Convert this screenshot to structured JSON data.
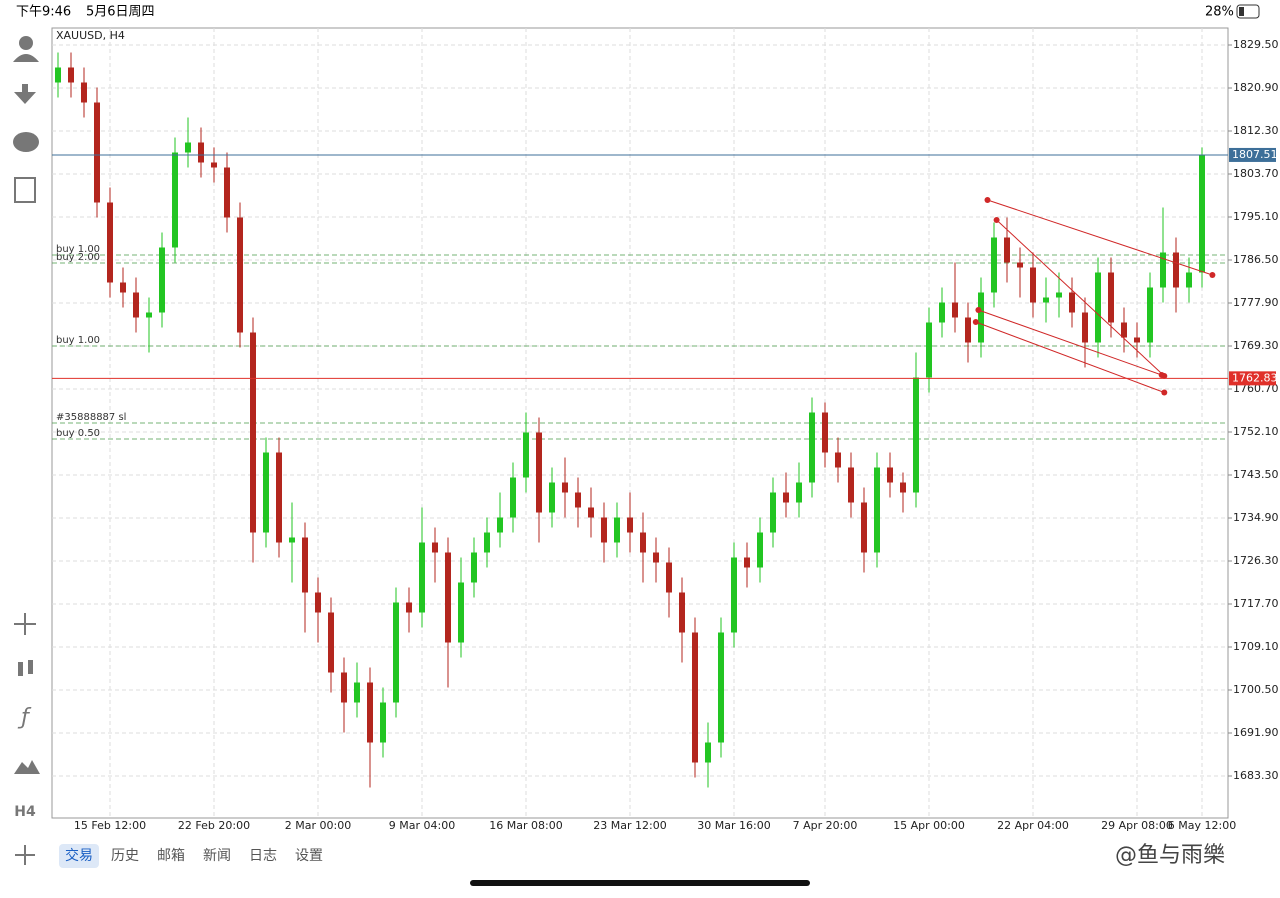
{
  "status_bar": {
    "time": "下午9:46",
    "date": "5月6日周四",
    "battery": "28%"
  },
  "sidebar": {
    "timeframe": "H4"
  },
  "tabs": [
    "交易",
    "历史",
    "邮箱",
    "新闻",
    "日志",
    "设置"
  ],
  "watermark": "@鱼与雨樂",
  "chart_data": {
    "type": "candlestick",
    "title": "XAUUSD, H4",
    "categories": [
      null,
      null,
      null,
      null,
      "15 Feb 12:00",
      null,
      null,
      null,
      null,
      null,
      null,
      null,
      "22 Feb 20:00",
      null,
      null,
      null,
      null,
      null,
      null,
      null,
      "2 Mar 00:00",
      null,
      null,
      null,
      null,
      null,
      null,
      null,
      "9 Mar 04:00",
      null,
      null,
      null,
      null,
      null,
      null,
      null,
      "16 Mar 08:00",
      null,
      null,
      null,
      null,
      null,
      null,
      null,
      "23 Mar 12:00",
      null,
      null,
      null,
      null,
      null,
      null,
      null,
      "30 Mar 16:00",
      null,
      null,
      null,
      null,
      null,
      null,
      "7 Apr 20:00",
      null,
      null,
      null,
      null,
      null,
      null,
      null,
      "15 Apr 00:00",
      null,
      null,
      null,
      null,
      null,
      null,
      null,
      "22 Apr 04:00",
      null,
      null,
      null,
      null,
      null,
      null,
      null,
      "29 Apr 08:00",
      null,
      null,
      null,
      null,
      "6 May 12:00"
    ],
    "open": [
      1822,
      1825,
      1822,
      1818,
      1798,
      1782,
      1780,
      1775,
      1776,
      1789,
      1808,
      1810,
      1806,
      1805,
      1795,
      1772,
      1732,
      1748,
      1730,
      1731,
      1720,
      1716,
      1704,
      1698,
      1702,
      1690,
      1698,
      1718,
      1716,
      1730,
      1728,
      1710,
      1722,
      1728,
      1732,
      1735,
      1743,
      1752,
      1736,
      1742,
      1740,
      1737,
      1735,
      1730,
      1735,
      1732,
      1728,
      1726,
      1720,
      1712,
      1686,
      1690,
      1712,
      1727,
      1725,
      1732,
      1740,
      1738,
      1742,
      1756,
      1748,
      1745,
      1738,
      1728,
      1745,
      1742,
      1740,
      1763,
      1774,
      1778,
      1775,
      1770,
      1780,
      1791,
      1786,
      1785,
      1778,
      1779,
      1780,
      1776,
      1770,
      1784,
      1774,
      1771,
      1770,
      1781,
      1788,
      1781,
      1784
    ],
    "high": [
      1828,
      1828,
      1825,
      1821,
      1801,
      1785,
      1783,
      1779,
      1792,
      1811,
      1815,
      1813,
      1809,
      1808,
      1798,
      1775,
      1751,
      1751,
      1738,
      1734,
      1723,
      1719,
      1707,
      1706,
      1705,
      1701,
      1721,
      1721,
      1737,
      1733,
      1731,
      1727,
      1731,
      1735,
      1740,
      1746,
      1756,
      1755,
      1745,
      1747,
      1743,
      1741,
      1738,
      1738,
      1740,
      1736,
      1731,
      1729,
      1723,
      1715,
      1694,
      1715,
      1730,
      1730,
      1735,
      1743,
      1744,
      1746,
      1759,
      1758,
      1751,
      1748,
      1741,
      1748,
      1748,
      1744,
      1768,
      1777,
      1781,
      1786,
      1778,
      1783,
      1794,
      1795,
      1789,
      1788,
      1783,
      1784,
      1783,
      1779,
      1787,
      1787,
      1777,
      1774,
      1784,
      1797,
      1791,
      1787,
      1809
    ],
    "low": [
      1819,
      1819,
      1815,
      1795,
      1779,
      1777,
      1772,
      1768,
      1773,
      1786,
      1805,
      1803,
      1802,
      1792,
      1769,
      1726,
      1729,
      1727,
      1722,
      1712,
      1710,
      1700,
      1692,
      1695,
      1681,
      1687,
      1695,
      1712,
      1713,
      1722,
      1701,
      1707,
      1719,
      1725,
      1729,
      1732,
      1740,
      1730,
      1733,
      1735,
      1733,
      1731,
      1726,
      1727,
      1728,
      1722,
      1722,
      1715,
      1706,
      1683,
      1681,
      1687,
      1709,
      1721,
      1722,
      1729,
      1735,
      1735,
      1739,
      1745,
      1742,
      1735,
      1724,
      1725,
      1739,
      1736,
      1737,
      1760,
      1771,
      1772,
      1766,
      1767,
      1777,
      1782,
      1779,
      1775,
      1774,
      1775,
      1773,
      1765,
      1767,
      1771,
      1768,
      1767,
      1767,
      1778,
      1776,
      1778,
      1781
    ],
    "close": [
      1825,
      1822,
      1818,
      1798,
      1782,
      1780,
      1775,
      1776,
      1789,
      1808,
      1810,
      1806,
      1805,
      1795,
      1772,
      1732,
      1748,
      1730,
      1731,
      1720,
      1716,
      1704,
      1698,
      1702,
      1690,
      1698,
      1718,
      1716,
      1730,
      1728,
      1710,
      1722,
      1728,
      1732,
      1735,
      1743,
      1752,
      1736,
      1742,
      1740,
      1737,
      1735,
      1730,
      1735,
      1732,
      1728,
      1726,
      1720,
      1712,
      1686,
      1690,
      1712,
      1727,
      1725,
      1732,
      1740,
      1738,
      1742,
      1756,
      1748,
      1745,
      1738,
      1728,
      1745,
      1742,
      1740,
      1763,
      1774,
      1778,
      1775,
      1770,
      1780,
      1791,
      1786,
      1785,
      1778,
      1779,
      1780,
      1776,
      1770,
      1784,
      1774,
      1771,
      1770,
      1781,
      1788,
      1781,
      1784,
      1807.51
    ],
    "up_color": "#22c522",
    "down_color": "#b3261e",
    "ylim": [
      1674.9,
      1832.9
    ],
    "yticks": [
      {
        "value": 1829.5,
        "label": "1829.50"
      },
      {
        "value": 1820.9,
        "label": "1820.90"
      },
      {
        "value": 1812.3,
        "label": "1812.30"
      },
      {
        "value": 1803.7,
        "label": "1803.70"
      },
      {
        "value": 1795.1,
        "label": "1795.10"
      },
      {
        "value": 1786.5,
        "label": "1786.50"
      },
      {
        "value": 1777.9,
        "label": "1777.90"
      },
      {
        "value": 1769.3,
        "label": "1769.30"
      },
      {
        "value": 1760.7,
        "label": "1760.70"
      },
      {
        "value": 1752.1,
        "label": "1752.10"
      },
      {
        "value": 1743.5,
        "label": "1743.50"
      },
      {
        "value": 1734.9,
        "label": "1734.90"
      },
      {
        "value": 1726.3,
        "label": "1726.30"
      },
      {
        "value": 1717.7,
        "label": "1717.70"
      },
      {
        "value": 1709.1,
        "label": "1709.10"
      },
      {
        "value": 1700.5,
        "label": "1700.50"
      },
      {
        "value": 1691.9,
        "label": "1691.90"
      },
      {
        "value": 1683.3,
        "label": "1683.30"
      }
    ],
    "grid": true,
    "price_lines": [
      {
        "value": 1807.51,
        "color": "#3d6f99"
      },
      {
        "value": 1762.83,
        "color": "#e0302a"
      }
    ],
    "orders": [
      {
        "label": "buy 1.00",
        "value": 1787.5
      },
      {
        "label": "buy 2.00",
        "value": 1785.9
      },
      {
        "label": "buy 1.00",
        "value": 1769.3
      },
      {
        "label": "#35888887 sl",
        "value": 1753.9
      },
      {
        "label": "buy 0.50",
        "value": 1750.7
      }
    ],
    "trendlines": [
      {
        "x": [
          71.5,
          88.8
        ],
        "y": [
          1798.5,
          1783.5
        ]
      },
      {
        "x": [
          72.2,
          85.1
        ],
        "y": [
          1794.5,
          1763.3
        ]
      },
      {
        "x": [
          70.8,
          84.9
        ],
        "y": [
          1776.5,
          1763.5
        ]
      },
      {
        "x": [
          70.6,
          85.1
        ],
        "y": [
          1774.1,
          1760
        ]
      }
    ],
    "trend_color": "#d02828"
  }
}
